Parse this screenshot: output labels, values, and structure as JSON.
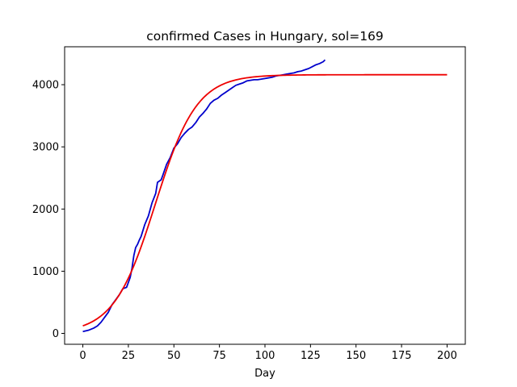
{
  "chart_data": {
    "type": "line",
    "title": "confirmed Cases in Hungary, sol=169",
    "xlabel": "Day",
    "ylabel": "",
    "xlim": [
      -10,
      210
    ],
    "ylim": [
      -175,
      4610
    ],
    "xticks": [
      0,
      25,
      50,
      75,
      100,
      125,
      150,
      175,
      200
    ],
    "yticks": [
      0,
      1000,
      2000,
      3000,
      4000
    ],
    "grid": false,
    "legend": "none",
    "series": [
      {
        "color": "#0000cc",
        "x": [
          0,
          3,
          6,
          8,
          10,
          12,
          14,
          16,
          18,
          20,
          22,
          24,
          25,
          26,
          27,
          28,
          29,
          30,
          31,
          32,
          34,
          36,
          38,
          40,
          41,
          42,
          43,
          44,
          46,
          48,
          50,
          52,
          54,
          56,
          58,
          60,
          62,
          64,
          66,
          68,
          70,
          72,
          74,
          76,
          78,
          80,
          82,
          84,
          86,
          88,
          90,
          92,
          94,
          96,
          98,
          100,
          102,
          104,
          106,
          108,
          110,
          112,
          114,
          116,
          118,
          120,
          122,
          124,
          126,
          128,
          130,
          132,
          133
        ],
        "y": [
          30,
          50,
          85,
          120,
          180,
          260,
          340,
          460,
          540,
          620,
          720,
          740,
          820,
          900,
          1050,
          1250,
          1380,
          1430,
          1500,
          1560,
          1750,
          1890,
          2100,
          2250,
          2430,
          2450,
          2470,
          2550,
          2720,
          2830,
          2980,
          3050,
          3150,
          3220,
          3280,
          3320,
          3390,
          3480,
          3540,
          3610,
          3700,
          3750,
          3780,
          3830,
          3870,
          3910,
          3950,
          3990,
          4010,
          4030,
          4060,
          4070,
          4080,
          4080,
          4090,
          4100,
          4110,
          4120,
          4140,
          4150,
          4160,
          4170,
          4180,
          4190,
          4210,
          4220,
          4240,
          4260,
          4290,
          4320,
          4340,
          4370,
          4400
        ]
      },
      {
        "color": "#ee0000",
        "fit": {
          "model": "logistic",
          "K": 4160,
          "r": 0.088,
          "x0": 39.8,
          "step": 1,
          "xmin": 0,
          "xmax": 200
        }
      }
    ]
  }
}
